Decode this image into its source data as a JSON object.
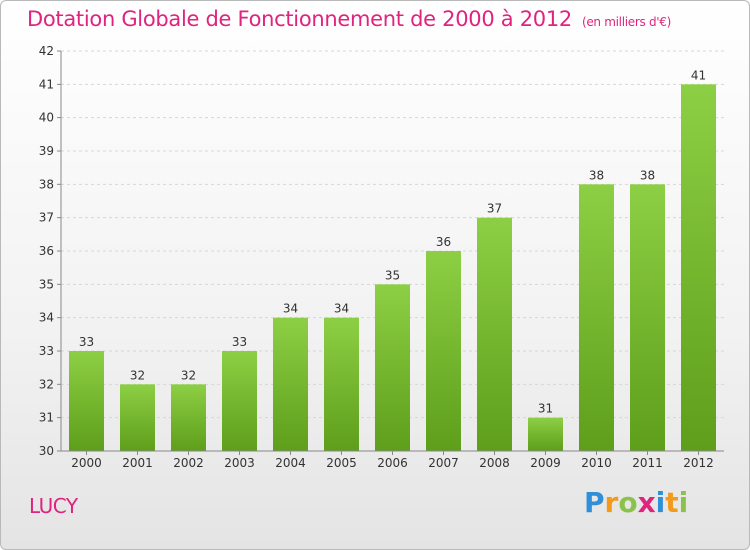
{
  "chart_data": {
    "type": "bar",
    "title": "Dotation Globale de Fonctionnement de 2000 à 2012",
    "subtitle": "(en milliers d'€)",
    "categories": [
      "2000",
      "2001",
      "2002",
      "2003",
      "2004",
      "2005",
      "2006",
      "2007",
      "2008",
      "2009",
      "2010",
      "2011",
      "2012"
    ],
    "values": [
      33,
      32,
      32,
      33,
      34,
      34,
      35,
      36,
      37,
      31,
      38,
      38,
      41
    ],
    "ylim": [
      30,
      42
    ],
    "yticks": [
      30,
      31,
      32,
      33,
      34,
      35,
      36,
      37,
      38,
      39,
      40,
      41,
      42
    ],
    "xlabel": "",
    "ylabel": "",
    "grid": true,
    "legend": "none",
    "bar_color_top": "#8dcf44",
    "bar_color_bottom": "#5e9e1b"
  },
  "footer": {
    "commune": "LUCY",
    "brand": "Proxiti"
  },
  "colors": {
    "title": "#e0237f",
    "brand_letters": [
      "#2f8fd8",
      "#f39a1b",
      "#8bc34a",
      "#e0237f",
      "#2f8fd8",
      "#f39a1b",
      "#8bc34a"
    ]
  }
}
